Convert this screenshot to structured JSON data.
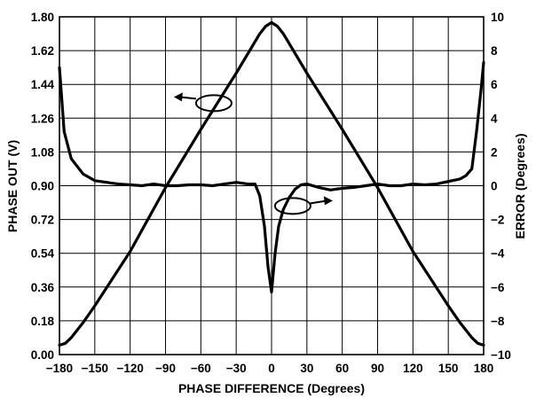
{
  "chart_data": {
    "type": "line",
    "xlabel": "PHASE DIFFERENCE (Degrees)",
    "ylabel_left": "PHASE OUT (V)",
    "ylabel_right": "ERROR (Degrees)",
    "xlim": [
      -180,
      180
    ],
    "ylim_left": [
      0,
      1.8
    ],
    "ylim_right": [
      -10,
      10
    ],
    "x_ticks": [
      "−180",
      "−150",
      "−120",
      "−90",
      "−60",
      "−30",
      "0",
      "30",
      "60",
      "90",
      "120",
      "150",
      "180"
    ],
    "y_left_ticks": [
      "0.00",
      "0.18",
      "0.36",
      "0.54",
      "0.72",
      "0.90",
      "1.08",
      "1.26",
      "1.44",
      "1.62",
      "1.80"
    ],
    "y_right_ticks": [
      "−10",
      "−8",
      "−6",
      "−4",
      "−2",
      "0",
      "2",
      "4",
      "6",
      "8",
      "10"
    ],
    "x_tick_values": [
      -180,
      -150,
      -120,
      -90,
      -60,
      -30,
      0,
      30,
      60,
      90,
      120,
      150,
      180
    ],
    "y_left_tick_values": [
      0,
      0.18,
      0.36,
      0.54,
      0.72,
      0.9,
      1.08,
      1.26,
      1.44,
      1.62,
      1.8
    ],
    "y_right_tick_values": [
      -10,
      -8,
      -6,
      -4,
      -2,
      0,
      2,
      4,
      6,
      8,
      10
    ],
    "grid": true,
    "series": [
      {
        "axis": "left",
        "x": [
          -180,
          -175,
          -170,
          -165,
          -160,
          -150,
          -120,
          -90,
          -60,
          -30,
          -10,
          -5,
          0,
          5,
          10,
          30,
          60,
          90,
          120,
          150,
          160,
          165,
          170,
          175,
          180
        ],
        "y": [
          0.05,
          0.06,
          0.09,
          0.13,
          0.17,
          0.26,
          0.55,
          0.89,
          1.2,
          1.5,
          1.71,
          1.75,
          1.77,
          1.75,
          1.71,
          1.5,
          1.2,
          0.89,
          0.55,
          0.26,
          0.17,
          0.13,
          0.09,
          0.06,
          0.05
        ]
      },
      {
        "axis": "right",
        "x": [
          -180,
          -176,
          -170,
          -160,
          -150,
          -140,
          -130,
          -120,
          -110,
          -100,
          -90,
          -80,
          -70,
          -60,
          -50,
          -40,
          -30,
          -20,
          -14,
          -10,
          -6,
          -3,
          0,
          3,
          6,
          10,
          15,
          20,
          25,
          30,
          40,
          50,
          60,
          70,
          80,
          90,
          100,
          110,
          120,
          130,
          140,
          150,
          160,
          165,
          170,
          174,
          178,
          180
        ],
        "y": [
          7.0,
          3.2,
          1.6,
          0.7,
          0.3,
          0.2,
          0.1,
          0.05,
          0.0,
          0.1,
          0.0,
          0.0,
          0.05,
          0.05,
          0.0,
          0.1,
          0.2,
          0.1,
          0.1,
          -0.6,
          -2.4,
          -4.8,
          -6.3,
          -4.0,
          -2.4,
          -1.4,
          -0.7,
          -0.2,
          0.05,
          0.1,
          -0.1,
          -0.25,
          -0.15,
          -0.1,
          0.0,
          0.1,
          0.0,
          0.0,
          0.1,
          0.05,
          0.1,
          0.25,
          0.4,
          0.6,
          1.0,
          3.2,
          5.8,
          7.3
        ]
      }
    ],
    "annotations": [
      {
        "type": "arrow",
        "direction": "left",
        "refers_to": "left-axis",
        "attached_series": 0
      },
      {
        "type": "arrow",
        "direction": "right",
        "refers_to": "right-axis",
        "attached_series": 1
      }
    ]
  }
}
